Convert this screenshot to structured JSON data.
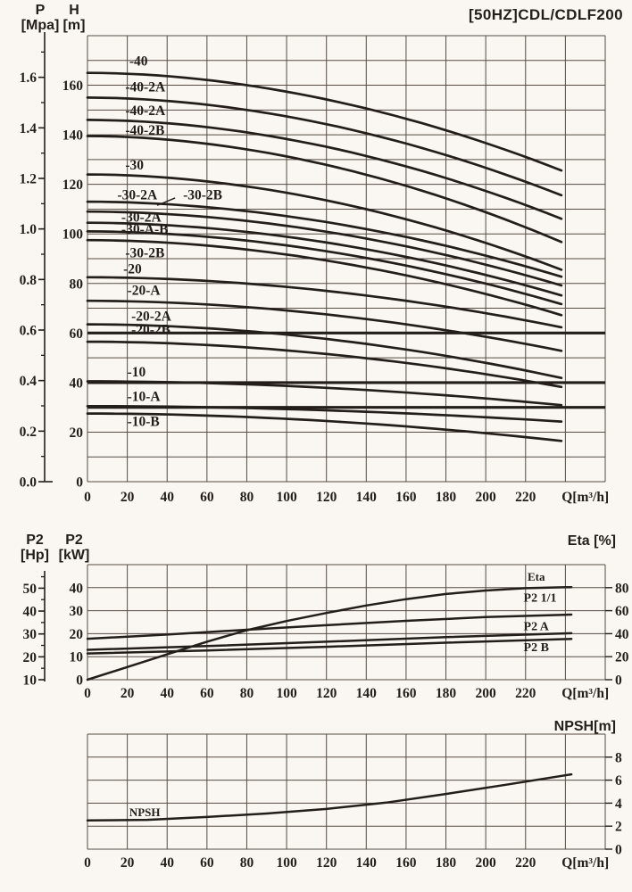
{
  "title": "[50HZ]CDL/CDLF200",
  "axis_titles": {
    "pressure": [
      "P",
      "[Mpa]"
    ],
    "head": [
      "H",
      "[m]"
    ],
    "power_hp": [
      "P2",
      "[Hp]"
    ],
    "power_kw": [
      "P2",
      "[kW]"
    ],
    "eta": "Eta [%]",
    "npsh": "NPSH[m]"
  },
  "chart_data": [
    {
      "id": "head-flow-curves",
      "type": "line",
      "title": "[50HZ]CDL/CDLF200",
      "xlabel": "Q[m³/h]",
      "x_ticks": [
        0,
        20,
        40,
        60,
        80,
        100,
        120,
        140,
        160,
        180,
        200,
        220
      ],
      "xlim": [
        0,
        260
      ],
      "x_grid_step": 20,
      "y_head_axis": {
        "label": "H[m]",
        "ticks": [
          0,
          20,
          40,
          60,
          80,
          100,
          120,
          140,
          160
        ],
        "lim": [
          0,
          180
        ],
        "grid_step": 10
      },
      "y_pressure_axis": {
        "label": "P[Mpa]",
        "ticks": [
          "0.0",
          "0.2",
          "0.4",
          "0.6",
          "0.8",
          "1.0",
          "1.2",
          "1.4",
          "1.6"
        ],
        "minor_step_mpa": 0.1,
        "m_per_mpa": 102
      },
      "reference_lines_h_m": [
        60,
        40,
        30
      ],
      "q_curve_end": 243,
      "series": [
        {
          "name": "-40",
          "h_start": 165,
          "h_end": 124,
          "label_q": 21,
          "label_h": 168
        },
        {
          "name": "-40-2A",
          "h_start": 155,
          "h_end": 114,
          "label_q": 19,
          "label_h": 157.5
        },
        {
          "name": "-40-2A",
          "h_start": 146,
          "h_end": 104.5,
          "label_q": 19,
          "label_h": 148
        },
        {
          "name": "-40-2B",
          "h_start": 139.5,
          "h_end": 95,
          "label_q": 19,
          "label_h": 140
        },
        {
          "name": "-30",
          "h_start": 124,
          "h_end": 84,
          "label_q": 19,
          "label_h": 126
        },
        {
          "name": "-30-2A",
          "h_start": 113,
          "h_end": 81.5,
          "label_q": 15,
          "label_h": 114
        },
        {
          "name": "-30-2B",
          "h_start": 109,
          "h_end": 78,
          "label_q": 48,
          "label_h": 114,
          "leader": [
            [
              44,
              114.5
            ],
            [
              35,
              111.5
            ]
          ]
        },
        {
          "name": "-30-2A",
          "h_start": 104.5,
          "h_end": 74,
          "label_q": 17,
          "label_h": 105
        },
        {
          "name": "-30-A-B",
          "h_start": 101,
          "h_end": 70.5,
          "label_q": 17,
          "label_h": 100
        },
        {
          "name": "-30-2B",
          "h_start": 97.5,
          "h_end": 66,
          "label_q": 19,
          "label_h": 90.5
        },
        {
          "name": "-20",
          "h_start": 82.5,
          "h_end": 61.5,
          "label_q": 18,
          "label_h": 84
        },
        {
          "name": "-20-A",
          "h_start": 73,
          "h_end": 52,
          "label_q": 20,
          "label_h": 75.5
        },
        {
          "name": "-20-2A",
          "h_start": 63.5,
          "h_end": 41,
          "label_q": 22,
          "label_h": 65
        },
        {
          "name": "-20-2B",
          "h_start": 56.5,
          "h_end": 37.5,
          "label_q": 22,
          "label_h": 59.5
        },
        {
          "name": "-10",
          "h_start": 40.5,
          "h_end": 30.5,
          "label_q": 20,
          "label_h": 42.5
        },
        {
          "name": "-10-A",
          "h_start": 30.5,
          "h_end": 24,
          "label_q": 20,
          "label_h": 32.5
        },
        {
          "name": "-10-B",
          "h_start": 27.5,
          "h_end": 16,
          "label_q": 20,
          "label_h": 22.5
        }
      ]
    },
    {
      "id": "power-efficiency",
      "type": "line",
      "xlabel": "Q[m³/h]",
      "x_ticks": [
        0,
        20,
        40,
        60,
        80,
        100,
        120,
        140,
        160,
        180,
        200,
        220
      ],
      "xlim": [
        0,
        260
      ],
      "y_power_kw_axis": {
        "label": "P2[kW]",
        "ticks": [
          0,
          10,
          20,
          30,
          40
        ],
        "lim": [
          0,
          50
        ],
        "grid_step": 10
      },
      "y_power_hp_axis": {
        "label": "P2[Hp]",
        "ticks": [
          10,
          20,
          30,
          40,
          50
        ],
        "minor_ticks": [
          15,
          25,
          35,
          45,
          55
        ]
      },
      "y_eta_axis": {
        "label": "Eta [%]",
        "ticks": [
          0,
          20,
          40,
          60,
          80
        ],
        "lim": [
          0,
          100
        ]
      },
      "series": [
        {
          "name": "Eta",
          "axis": "eta",
          "label_q": 221,
          "label_kw": 43,
          "points": [
            [
              0,
              0
            ],
            [
              20,
              11
            ],
            [
              40,
              22
            ],
            [
              60,
              33
            ],
            [
              80,
              43
            ],
            [
              100,
              51
            ],
            [
              120,
              58
            ],
            [
              140,
              64.5
            ],
            [
              160,
              70
            ],
            [
              180,
              74.5
            ],
            [
              200,
              77.5
            ],
            [
              220,
              79.5
            ],
            [
              243,
              80.5
            ]
          ]
        },
        {
          "name": "P2 1/1",
          "axis": "kw",
          "label_q": 219,
          "label_kw": 34,
          "points": [
            [
              0,
              17.8
            ],
            [
              40,
              19.6
            ],
            [
              80,
              21.7
            ],
            [
              120,
              23.7
            ],
            [
              160,
              25.6
            ],
            [
              200,
              27.2
            ],
            [
              243,
              28.3
            ]
          ]
        },
        {
          "name": "P2 A",
          "axis": "kw",
          "label_q": 219,
          "label_kw": 21.5,
          "points": [
            [
              0,
              13
            ],
            [
              60,
              14.6
            ],
            [
              120,
              16.5
            ],
            [
              180,
              18.5
            ],
            [
              243,
              20.2
            ]
          ]
        },
        {
          "name": "P2 B",
          "axis": "kw",
          "label_q": 219,
          "label_kw": 12.5,
          "points": [
            [
              0,
              11.4
            ],
            [
              60,
              12.7
            ],
            [
              120,
              14.3
            ],
            [
              180,
              16.1
            ],
            [
              243,
              17.7
            ]
          ]
        }
      ]
    },
    {
      "id": "npsh",
      "type": "line",
      "xlabel": "Q[m³/h]",
      "x_ticks": [
        0,
        20,
        40,
        60,
        80,
        100,
        120,
        140,
        160,
        180,
        200,
        220
      ],
      "xlim": [
        0,
        260
      ],
      "y_npsh_axis": {
        "label": "NPSH[m]",
        "ticks": [
          0,
          2,
          4,
          6,
          8
        ],
        "lim": [
          0,
          10
        ],
        "grid_step": 2
      },
      "series": [
        {
          "name": "NPSH",
          "label_q": 21,
          "label_val": 2.85,
          "points": [
            [
              0,
              2.5
            ],
            [
              30,
              2.55
            ],
            [
              60,
              2.8
            ],
            [
              90,
              3.1
            ],
            [
              120,
              3.5
            ],
            [
              150,
              4.05
            ],
            [
              180,
              4.8
            ],
            [
              210,
              5.6
            ],
            [
              243,
              6.5
            ]
          ]
        }
      ]
    }
  ]
}
